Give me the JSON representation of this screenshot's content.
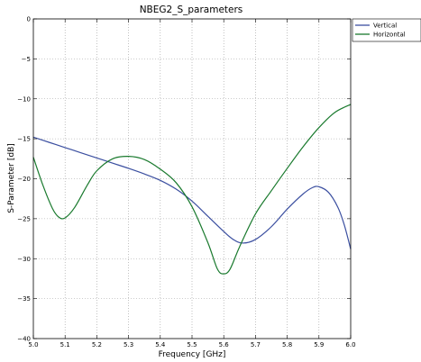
{
  "chart_data": {
    "type": "line",
    "title": "NBEG2_S_parameters",
    "xlabel": "Frequency [GHz]",
    "ylabel": "S-Parameter [dB]",
    "xlim": [
      5.0,
      6.0
    ],
    "ylim": [
      -40,
      0
    ],
    "xticks": [
      5.0,
      5.1,
      5.2,
      5.3,
      5.4,
      5.5,
      5.6,
      5.7,
      5.8,
      5.9,
      6.0
    ],
    "xtick_labels": [
      "5.0",
      "5.1",
      "5.2",
      "5.3",
      "5.4",
      "5.5",
      "5.6",
      "5.7",
      "5.8",
      "5.9",
      "6.0"
    ],
    "yticks": [
      0,
      -5,
      -10,
      -15,
      -20,
      -25,
      -30,
      -35,
      -40
    ],
    "ytick_labels": [
      "0",
      "−5",
      "−10",
      "−15",
      "−20",
      "−25",
      "−30",
      "−35",
      "−40"
    ],
    "grid": true,
    "legend_position": "outside top-right",
    "series": [
      {
        "name": "Vertical",
        "color": "#3b4fa0",
        "points": [
          [
            5.0,
            -14.8
          ],
          [
            5.05,
            -15.45
          ],
          [
            5.1,
            -16.1
          ],
          [
            5.15,
            -16.75
          ],
          [
            5.2,
            -17.4
          ],
          [
            5.25,
            -18.05
          ],
          [
            5.3,
            -18.7
          ],
          [
            5.35,
            -19.4
          ],
          [
            5.4,
            -20.2
          ],
          [
            5.45,
            -21.3
          ],
          [
            5.5,
            -22.8
          ],
          [
            5.55,
            -24.7
          ],
          [
            5.6,
            -26.6
          ],
          [
            5.63,
            -27.6
          ],
          [
            5.66,
            -28.05
          ],
          [
            5.7,
            -27.6
          ],
          [
            5.75,
            -26.0
          ],
          [
            5.8,
            -23.8
          ],
          [
            5.85,
            -21.9
          ],
          [
            5.88,
            -21.1
          ],
          [
            5.9,
            -21.0
          ],
          [
            5.93,
            -21.7
          ],
          [
            5.96,
            -23.6
          ],
          [
            5.98,
            -25.8
          ],
          [
            6.0,
            -28.8
          ]
        ]
      },
      {
        "name": "Horizontal",
        "color": "#1a7a2e",
        "points": [
          [
            5.0,
            -17.3
          ],
          [
            5.03,
            -20.8
          ],
          [
            5.06,
            -23.7
          ],
          [
            5.08,
            -24.8
          ],
          [
            5.1,
            -24.9
          ],
          [
            5.13,
            -23.6
          ],
          [
            5.17,
            -20.8
          ],
          [
            5.2,
            -19.0
          ],
          [
            5.25,
            -17.5
          ],
          [
            5.3,
            -17.2
          ],
          [
            5.35,
            -17.6
          ],
          [
            5.4,
            -18.8
          ],
          [
            5.45,
            -20.5
          ],
          [
            5.5,
            -23.5
          ],
          [
            5.55,
            -28.0
          ],
          [
            5.58,
            -31.3
          ],
          [
            5.6,
            -31.9
          ],
          [
            5.62,
            -31.3
          ],
          [
            5.65,
            -28.5
          ],
          [
            5.7,
            -24.4
          ],
          [
            5.75,
            -21.5
          ],
          [
            5.8,
            -18.7
          ],
          [
            5.85,
            -16.0
          ],
          [
            5.9,
            -13.6
          ],
          [
            5.95,
            -11.7
          ],
          [
            6.0,
            -10.7
          ]
        ]
      }
    ]
  }
}
